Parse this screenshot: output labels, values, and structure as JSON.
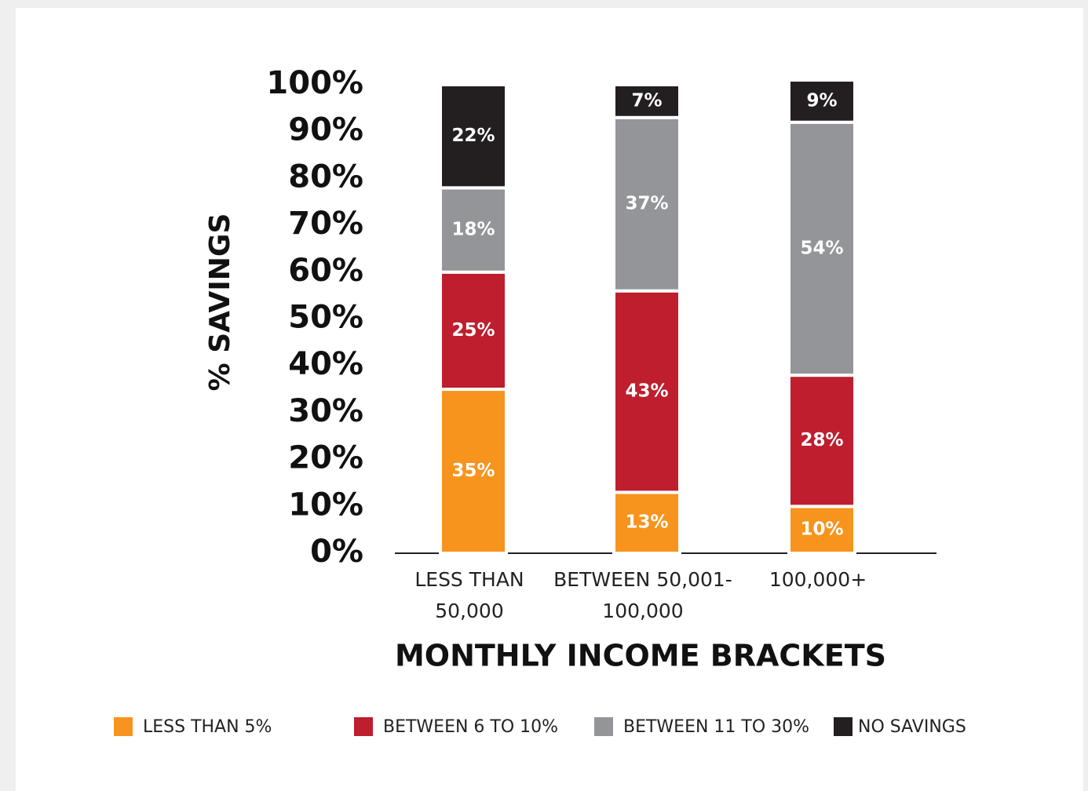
{
  "chart_data": {
    "type": "stacked_bar",
    "y_label": "% SAVINGS",
    "x_label": "MONTHLY INCOME BRACKETS",
    "categories": [
      "LESS THAN 50,000",
      "BETWEEN 50,001-100,000",
      "100,000+"
    ],
    "series": [
      {
        "name": "LESS THAN 5%",
        "color": "#f7941d",
        "values": [
          35,
          13,
          10
        ],
        "value_labels": [
          "35%",
          "13%",
          "10%"
        ]
      },
      {
        "name": "BETWEEN 6 TO 10%",
        "color": "#be1e2d",
        "values": [
          25,
          43,
          28
        ],
        "value_labels": [
          "25%",
          "43%",
          "28%"
        ]
      },
      {
        "name": "BETWEEN 11 TO 30%",
        "color": "#939598",
        "values": [
          18,
          37,
          54
        ],
        "value_labels": [
          "18%",
          "37%",
          "54%"
        ]
      },
      {
        "name": "NO SAVINGS",
        "color": "#231f20",
        "values": [
          22,
          7,
          9
        ],
        "value_labels": [
          "22%",
          "7%",
          "9%"
        ]
      }
    ],
    "ylim": [
      0,
      100
    ],
    "yticks": [
      {
        "value": 0,
        "label": "0%"
      },
      {
        "value": 10,
        "label": "10%"
      },
      {
        "value": 20,
        "label": "20%"
      },
      {
        "value": 30,
        "label": "30%"
      },
      {
        "value": 40,
        "label": "40%"
      },
      {
        "value": 50,
        "label": "50%"
      },
      {
        "value": 60,
        "label": "60%"
      },
      {
        "value": 70,
        "label": "70%"
      },
      {
        "value": 80,
        "label": "80%"
      },
      {
        "value": 90,
        "label": "90%"
      },
      {
        "value": 100,
        "label": "100%"
      }
    ],
    "legend": "bottom"
  }
}
